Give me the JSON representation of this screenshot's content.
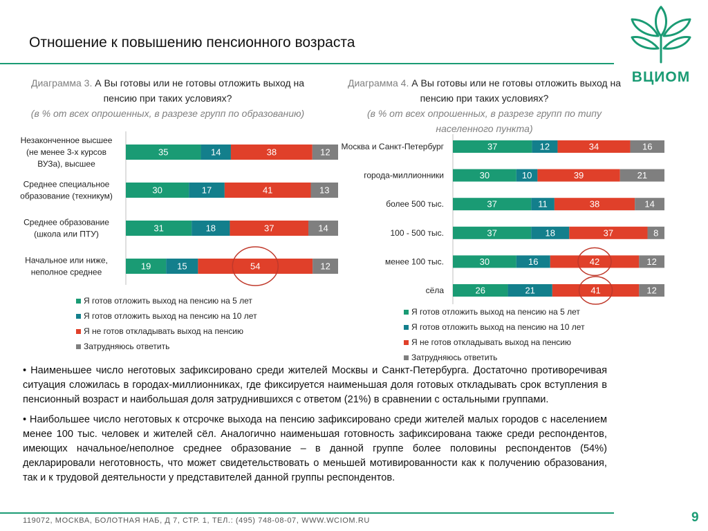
{
  "slide": {
    "title": "Отношение к повышению пенсионного возраста",
    "logo_text": "ВЦИОМ",
    "footer": "119072, МОСКВА, БОЛОТНАЯ НАБ, Д 7, СТР. 1, ТЕЛ.: (495) 748-08-07, WWW.WCIOM.RU",
    "page_number": "9"
  },
  "colors": {
    "ready5": "#1a9b74",
    "ready10": "#137f8c",
    "notready": "#e0402a",
    "hard": "#7f7f7f",
    "brand": "#1a9b74",
    "highlight": "#c0392b"
  },
  "charts": [
    {
      "prefix": "Диаграмма 3.",
      "question": "А Вы готовы или не готовы отложить выход на пенсию при таких условиях?",
      "note": "(в % от всех опрошенных, в разрезе групп по образованию)"
    },
    {
      "prefix": "Диаграмма 4.",
      "question": "А Вы готовы или не готовы отложить выход на пенсию при таких условиях?",
      "note": "(в % от всех опрошенных, в разрезе групп по типу населенного пункта)"
    }
  ],
  "chart_data": [
    {
      "type": "bar",
      "orientation": "horizontal",
      "stacked": true,
      "categories": [
        "Незаконченное высшее (не менее 3-х курсов ВУЗа), высшее",
        "Среднее специальное образование (техникум)",
        "Среднее образование (школа или ПТУ)",
        "Начальное или ниже, неполное среднее"
      ],
      "series": [
        {
          "name": "Я готов отложить выход на пенсию на 5 лет",
          "values": [
            35,
            30,
            31,
            19
          ]
        },
        {
          "name": "Я готов отложить выход на пенсию на 10 лет",
          "values": [
            14,
            17,
            18,
            15
          ]
        },
        {
          "name": "Я не готов откладывать выход на пенсию",
          "values": [
            38,
            41,
            37,
            54
          ]
        },
        {
          "name": "Затрудняюсь ответить",
          "values": [
            12,
            13,
            14,
            12
          ]
        }
      ],
      "highlighted": [
        {
          "category_index": 3,
          "series_index": 2
        }
      ],
      "legend_position": "bottom",
      "grid": false
    },
    {
      "type": "bar",
      "orientation": "horizontal",
      "stacked": true,
      "categories": [
        "Москва и Санкт-Петербург",
        "города-миллионники",
        "более 500 тыс.",
        "100 - 500 тыс.",
        "менее 100 тыс.",
        "сёла"
      ],
      "series": [
        {
          "name": "Я готов отложить выход на пенсию на 5 лет",
          "values": [
            37,
            30,
            37,
            37,
            30,
            26
          ]
        },
        {
          "name": "Я готов отложить выход на пенсию на 10 лет",
          "values": [
            12,
            10,
            11,
            18,
            16,
            21
          ]
        },
        {
          "name": "Я не готов откладывать выход на пенсию",
          "values": [
            34,
            39,
            38,
            37,
            42,
            41
          ]
        },
        {
          "name": "Затрудняюсь ответить",
          "values": [
            16,
            21,
            14,
            8,
            12,
            12
          ]
        }
      ],
      "highlighted": [
        {
          "category_index": 4,
          "series_index": 2
        },
        {
          "category_index": 5,
          "series_index": 2
        }
      ],
      "legend_position": "bottom",
      "grid": false
    }
  ],
  "bullets": [
    "• Наименьшее число неготовых зафиксировано среди жителей Москвы и Санкт-Петербурга. Достаточно противоречивая ситуация сложилась в городах-миллионниках, где фиксируется наименьшая доля готовых откладывать срок вступления в пенсионный возраст и наибольшая доля затруднившихся с ответом (21%) в сравнении с остальными группами.",
    "• Наибольшее число неготовых к отсрочке выхода на пенсию зафиксировано среди жителей малых городов с населением менее 100 тыс. человек и жителей сёл. Аналогично наименьшая готовность зафиксирована также среди респондентов, имеющих начальное/неполное среднее образование – в данной группе более половины респондентов (54%) декларировали неготовность, что может свидетельствовать о меньшей мотивированности как к получению образования, так и к трудовой деятельности у представителей данной группы респондентов."
  ]
}
